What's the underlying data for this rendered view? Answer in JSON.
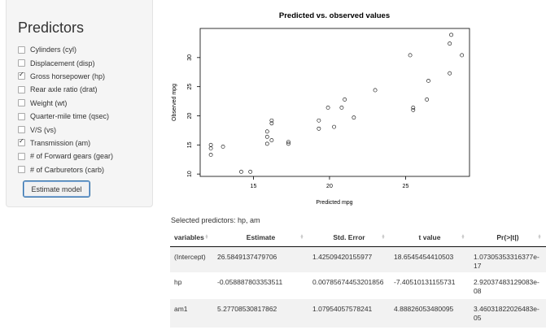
{
  "sidebar": {
    "title": "Predictors",
    "predictors": [
      {
        "label": "Cylinders (cyl)",
        "checked": false
      },
      {
        "label": "Displacement (disp)",
        "checked": false
      },
      {
        "label": "Gross horsepower (hp)",
        "checked": true
      },
      {
        "label": "Rear axle ratio (drat)",
        "checked": false
      },
      {
        "label": "Weight (wt)",
        "checked": false
      },
      {
        "label": "Quarter-mile time (qsec)",
        "checked": false
      },
      {
        "label": "V/S (vs)",
        "checked": false
      },
      {
        "label": "Transmission (am)",
        "checked": true
      },
      {
        "label": "# of Forward gears (gear)",
        "checked": false
      },
      {
        "label": "# of Carburetors (carb)",
        "checked": false
      }
    ],
    "button_label": "Estimate model"
  },
  "chart_data": {
    "type": "scatter",
    "title": "Predicted vs. observed values",
    "xlabel": "Predicted mpg",
    "ylabel": "Observed mpg",
    "xlim": [
      11.5,
      29.2
    ],
    "ylim": [
      9.6,
      35.0
    ],
    "xticks": [
      15,
      20,
      25
    ],
    "yticks": [
      10,
      15,
      20,
      25,
      30
    ],
    "grid": false,
    "points": [
      {
        "x": 12.2,
        "y": 14.4
      },
      {
        "x": 12.2,
        "y": 13.3
      },
      {
        "x": 12.2,
        "y": 15.0
      },
      {
        "x": 13.0,
        "y": 14.7
      },
      {
        "x": 14.2,
        "y": 10.4
      },
      {
        "x": 14.8,
        "y": 10.4
      },
      {
        "x": 15.9,
        "y": 15.2
      },
      {
        "x": 15.9,
        "y": 16.4
      },
      {
        "x": 15.9,
        "y": 17.3
      },
      {
        "x": 16.2,
        "y": 15.8
      },
      {
        "x": 16.2,
        "y": 18.7
      },
      {
        "x": 16.2,
        "y": 19.2
      },
      {
        "x": 17.3,
        "y": 15.2
      },
      {
        "x": 17.3,
        "y": 15.5
      },
      {
        "x": 19.3,
        "y": 17.8
      },
      {
        "x": 19.3,
        "y": 19.2
      },
      {
        "x": 19.9,
        "y": 21.4
      },
      {
        "x": 20.3,
        "y": 18.1
      },
      {
        "x": 20.8,
        "y": 21.4
      },
      {
        "x": 21.0,
        "y": 22.8
      },
      {
        "x": 21.6,
        "y": 19.7
      },
      {
        "x": 23.0,
        "y": 24.4
      },
      {
        "x": 25.3,
        "y": 30.4
      },
      {
        "x": 25.5,
        "y": 21.0
      },
      {
        "x": 25.5,
        "y": 21.4
      },
      {
        "x": 26.4,
        "y": 22.8
      },
      {
        "x": 26.5,
        "y": 26.0
      },
      {
        "x": 27.9,
        "y": 27.3
      },
      {
        "x": 27.9,
        "y": 32.4
      },
      {
        "x": 28.0,
        "y": 33.9
      },
      {
        "x": 28.7,
        "y": 30.4
      }
    ]
  },
  "results": {
    "selected_text": "Selected predictors: hp, am",
    "headers": [
      "variables",
      "Estimate",
      "Std. Error",
      "t value",
      "Pr(>|t|)"
    ],
    "rows": [
      [
        "(Intercept)",
        "26.5849137479706",
        "1.42509420155977",
        "18.6545454410503",
        "1.07305353316377e-17"
      ],
      [
        "hp",
        "-0.058887803353511",
        "0.00785674453201856",
        "-7.40510131155731",
        "2.92037483129083e-08"
      ],
      [
        "am1",
        "5.27708530817862",
        "1.07954057578241",
        "4.88826053480095",
        "3.46031822026483e-05"
      ]
    ]
  }
}
